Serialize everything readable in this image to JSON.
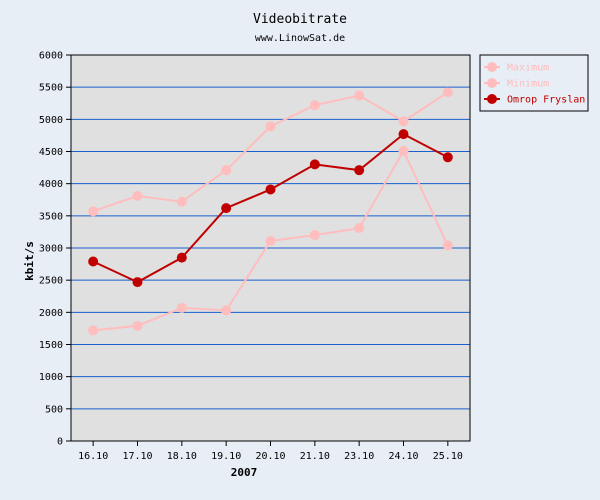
{
  "chart_data": {
    "type": "line",
    "title": "Videobitrate",
    "subtitle": "www.LinowSat.de",
    "xlabel": "2007",
    "ylabel": "kbit/s",
    "ylim": [
      0,
      6000
    ],
    "yticks": [
      0,
      500,
      1000,
      1500,
      2000,
      2500,
      3000,
      3500,
      4000,
      4500,
      5000,
      5500,
      6000
    ],
    "grid": true,
    "legend_position": "top-right outside",
    "categories": [
      "16.10",
      "17.10",
      "18.10",
      "19.10",
      "20.10",
      "21.10",
      "23.10",
      "24.10",
      "25.10"
    ],
    "series": [
      {
        "name": "Maximum",
        "color": "#ffbdbd",
        "values": [
          3570,
          3810,
          3720,
          4210,
          4890,
          5220,
          5370,
          4970,
          5420
        ]
      },
      {
        "name": "Minimum",
        "color": "#ffbdbd",
        "values": [
          1720,
          1790,
          2070,
          2030,
          3110,
          3200,
          3310,
          4510,
          3040
        ]
      },
      {
        "name": "Omrop Fryslan",
        "color": "#c00000",
        "values": [
          2790,
          2470,
          2850,
          3620,
          3910,
          4300,
          4210,
          4770,
          4410
        ]
      }
    ]
  }
}
